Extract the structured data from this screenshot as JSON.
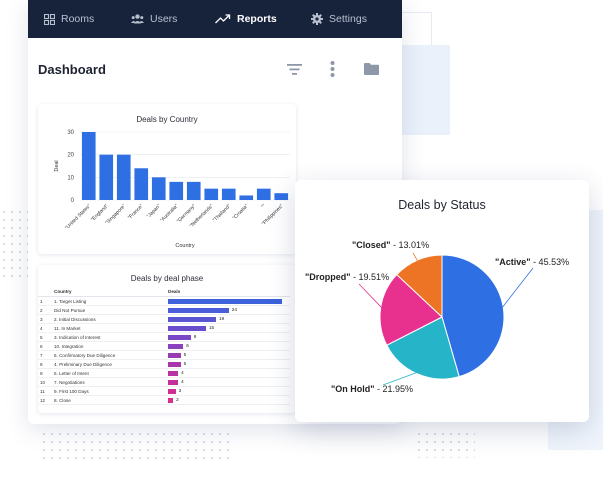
{
  "nav": {
    "items": [
      {
        "label": "Rooms",
        "icon": "grid-icon"
      },
      {
        "label": "Users",
        "icon": "users-icon"
      },
      {
        "label": "Reports",
        "icon": "trend-icon"
      },
      {
        "label": "Settings",
        "icon": "gear-icon"
      }
    ],
    "active": "Reports"
  },
  "page": {
    "title": "Dashboard",
    "toolbar": [
      "filter-icon",
      "more-vertical-icon",
      "folder-icon"
    ]
  },
  "colors": {
    "nav_bg": "#17233b",
    "bar": "#2f6fe4",
    "active": "#2f6fe4",
    "on_hold": "#26b5c8",
    "dropped": "#e8318f",
    "closed": "#ed7424"
  },
  "chart_data": [
    {
      "type": "bar",
      "title": "Deals by Country",
      "xlabel": "Country",
      "ylabel": "Deal",
      "ylim": [
        0,
        30
      ],
      "yticks": [
        0,
        10,
        20,
        30
      ],
      "categories": [
        "\"United States\"",
        "\"England\"",
        "\"Singapore\"",
        "\"France\"",
        "\"Japan\"",
        "\"Australia\"",
        "\"Germany\"",
        "\"Netherlands\"",
        "\"Thailand\"",
        "\"Croatia\"",
        "\"\"",
        "\"Philippines\""
      ],
      "values": [
        30,
        20,
        20,
        14,
        10,
        8,
        8,
        5,
        5,
        2,
        5,
        3
      ]
    },
    {
      "type": "table",
      "title": "Deals by deal phase",
      "columns": [
        "Country",
        "Deals"
      ],
      "rows": [
        {
          "n": "1",
          "phase": "1. Target Listing",
          "deals": 45,
          "label": ""
        },
        {
          "n": "2",
          "phase": "Did Not Pursue",
          "deals": 24,
          "label": "24"
        },
        {
          "n": "3",
          "phase": "2. Initial Discussions",
          "deals": 19,
          "label": "19"
        },
        {
          "n": "4",
          "phase": "11. In Market",
          "deals": 15,
          "label": "15"
        },
        {
          "n": "5",
          "phase": "3. Indication of Interest",
          "deals": 9,
          "label": "9"
        },
        {
          "n": "6",
          "phase": "10. Integration",
          "deals": 6,
          "label": "6"
        },
        {
          "n": "7",
          "phase": "6. Confirmatory Due Diligence",
          "deals": 5,
          "label": "5"
        },
        {
          "n": "8",
          "phase": "4. Preliminary Due Diligence",
          "deals": 5,
          "label": "5"
        },
        {
          "n": "9",
          "phase": "5. Letter of Intent",
          "deals": 4,
          "label": "4"
        },
        {
          "n": "10",
          "phase": "7. Negotiations",
          "deals": 4,
          "label": "4"
        },
        {
          "n": "11",
          "phase": "9. First 100 Days",
          "deals": 3,
          "label": "3"
        },
        {
          "n": "12",
          "phase": "8. Close",
          "deals": 2,
          "label": "2"
        }
      ]
    },
    {
      "type": "pie",
      "title": "Deals by Status",
      "slices": [
        {
          "name": "\"Active\"",
          "value": 45.53,
          "label": " - 45.53%",
          "color": "#2f6fe4"
        },
        {
          "name": "\"On Hold\"",
          "value": 21.95,
          "label": " - 21.95%",
          "color": "#26b5c8"
        },
        {
          "name": "\"Dropped\"",
          "value": 19.51,
          "label": " - 19.51%",
          "color": "#e8318f"
        },
        {
          "name": "\"Closed\"",
          "value": 13.01,
          "label": " - 13.01%",
          "color": "#ed7424"
        }
      ]
    }
  ]
}
